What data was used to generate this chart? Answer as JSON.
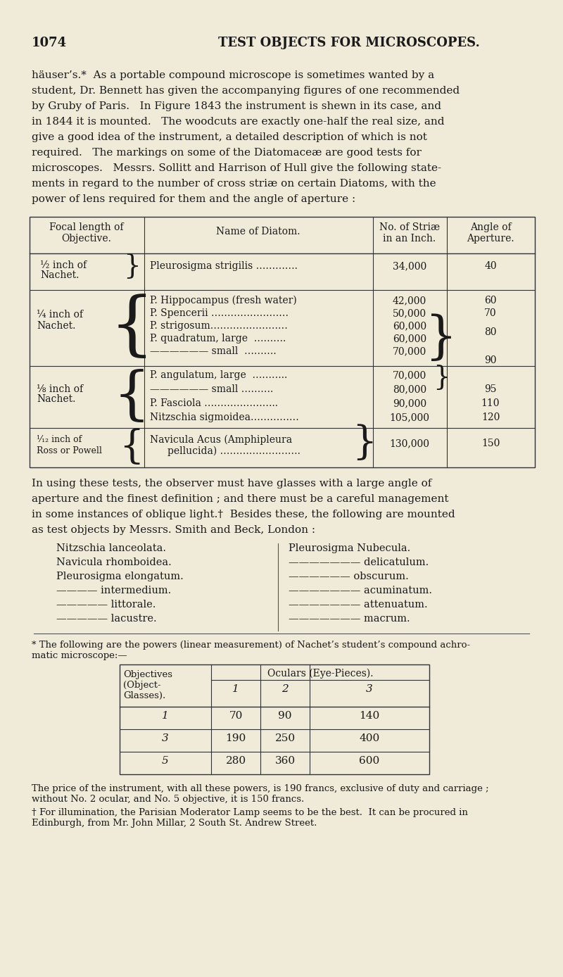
{
  "bg_color": "#f0ead8",
  "text_color": "#1a1a1a",
  "page_number": "1074",
  "page_title": "TEST OBJECTS FOR MICROSCOPES.",
  "intro_lines": [
    "häuser’s.*  As a portable compound microscope is sometimes wanted by a",
    "student, Dr. Bennett has given the accompanying figures of one recommended",
    "by Gruby of Paris.   In Figure 1843 the instrument is shewn in its case, and",
    "in 1844 it is mounted.   The woodcuts are exactly one-half the real size, and",
    "give a good idea of the instrument, a detailed description of which is not",
    "required.   The markings on some of the Diatomaceæ are good tests for",
    "microscopes.   Messrs. Sollitt and Harrison of Hull give the following state-",
    "ments in regard to the number of cross striæ on certain Diatoms, with the",
    "power of lens required for them and the angle of aperture :"
  ],
  "para2_lines": [
    "In using these tests, the observer must have glasses with a large angle of",
    "aperture and the finest definition ; and there must be a careful management",
    "in some instances of oblique light.†  Besides these, the following are mounted",
    "as test objects by Messrs. Smith and Beck, London :"
  ],
  "list_left": [
    "Nitzschia lanceolata.",
    "Navicula rhomboidea.",
    "Pleurosigma elongatum.",
    "———— intermedium.",
    "————— littorale.",
    "————— lacustre."
  ],
  "list_right": [
    "Pleurosigma Nubecula.",
    "——————— delicatulum.",
    "—————— obscurum.",
    "——————— acuminatum.",
    "——————— attenuatum.",
    "——————— macrum."
  ],
  "footnote1a": "* The following are the powers (linear measurement) of Nachet’s student’s compound achro-",
  "footnote1b": "matic microscope:—",
  "table2_rows": [
    [
      "1",
      "70",
      "90",
      "140"
    ],
    [
      "3",
      "190",
      "250",
      "400"
    ],
    [
      "5",
      "280",
      "360",
      "600"
    ]
  ],
  "footnote2a": "The price of the instrument, with all these powers, is 190 francs, exclusive of duty and carriage ;",
  "footnote2b": "without No. 2 ocular, and No. 5 objective, it is 150 francs.",
  "footnote3a": "† For illumination, the Parisian Moderator Lamp seems to be the best.  It can be procured in",
  "footnote3b": "Edinburgh, from Mr. John Millar, 2 South St. Andrew Street."
}
